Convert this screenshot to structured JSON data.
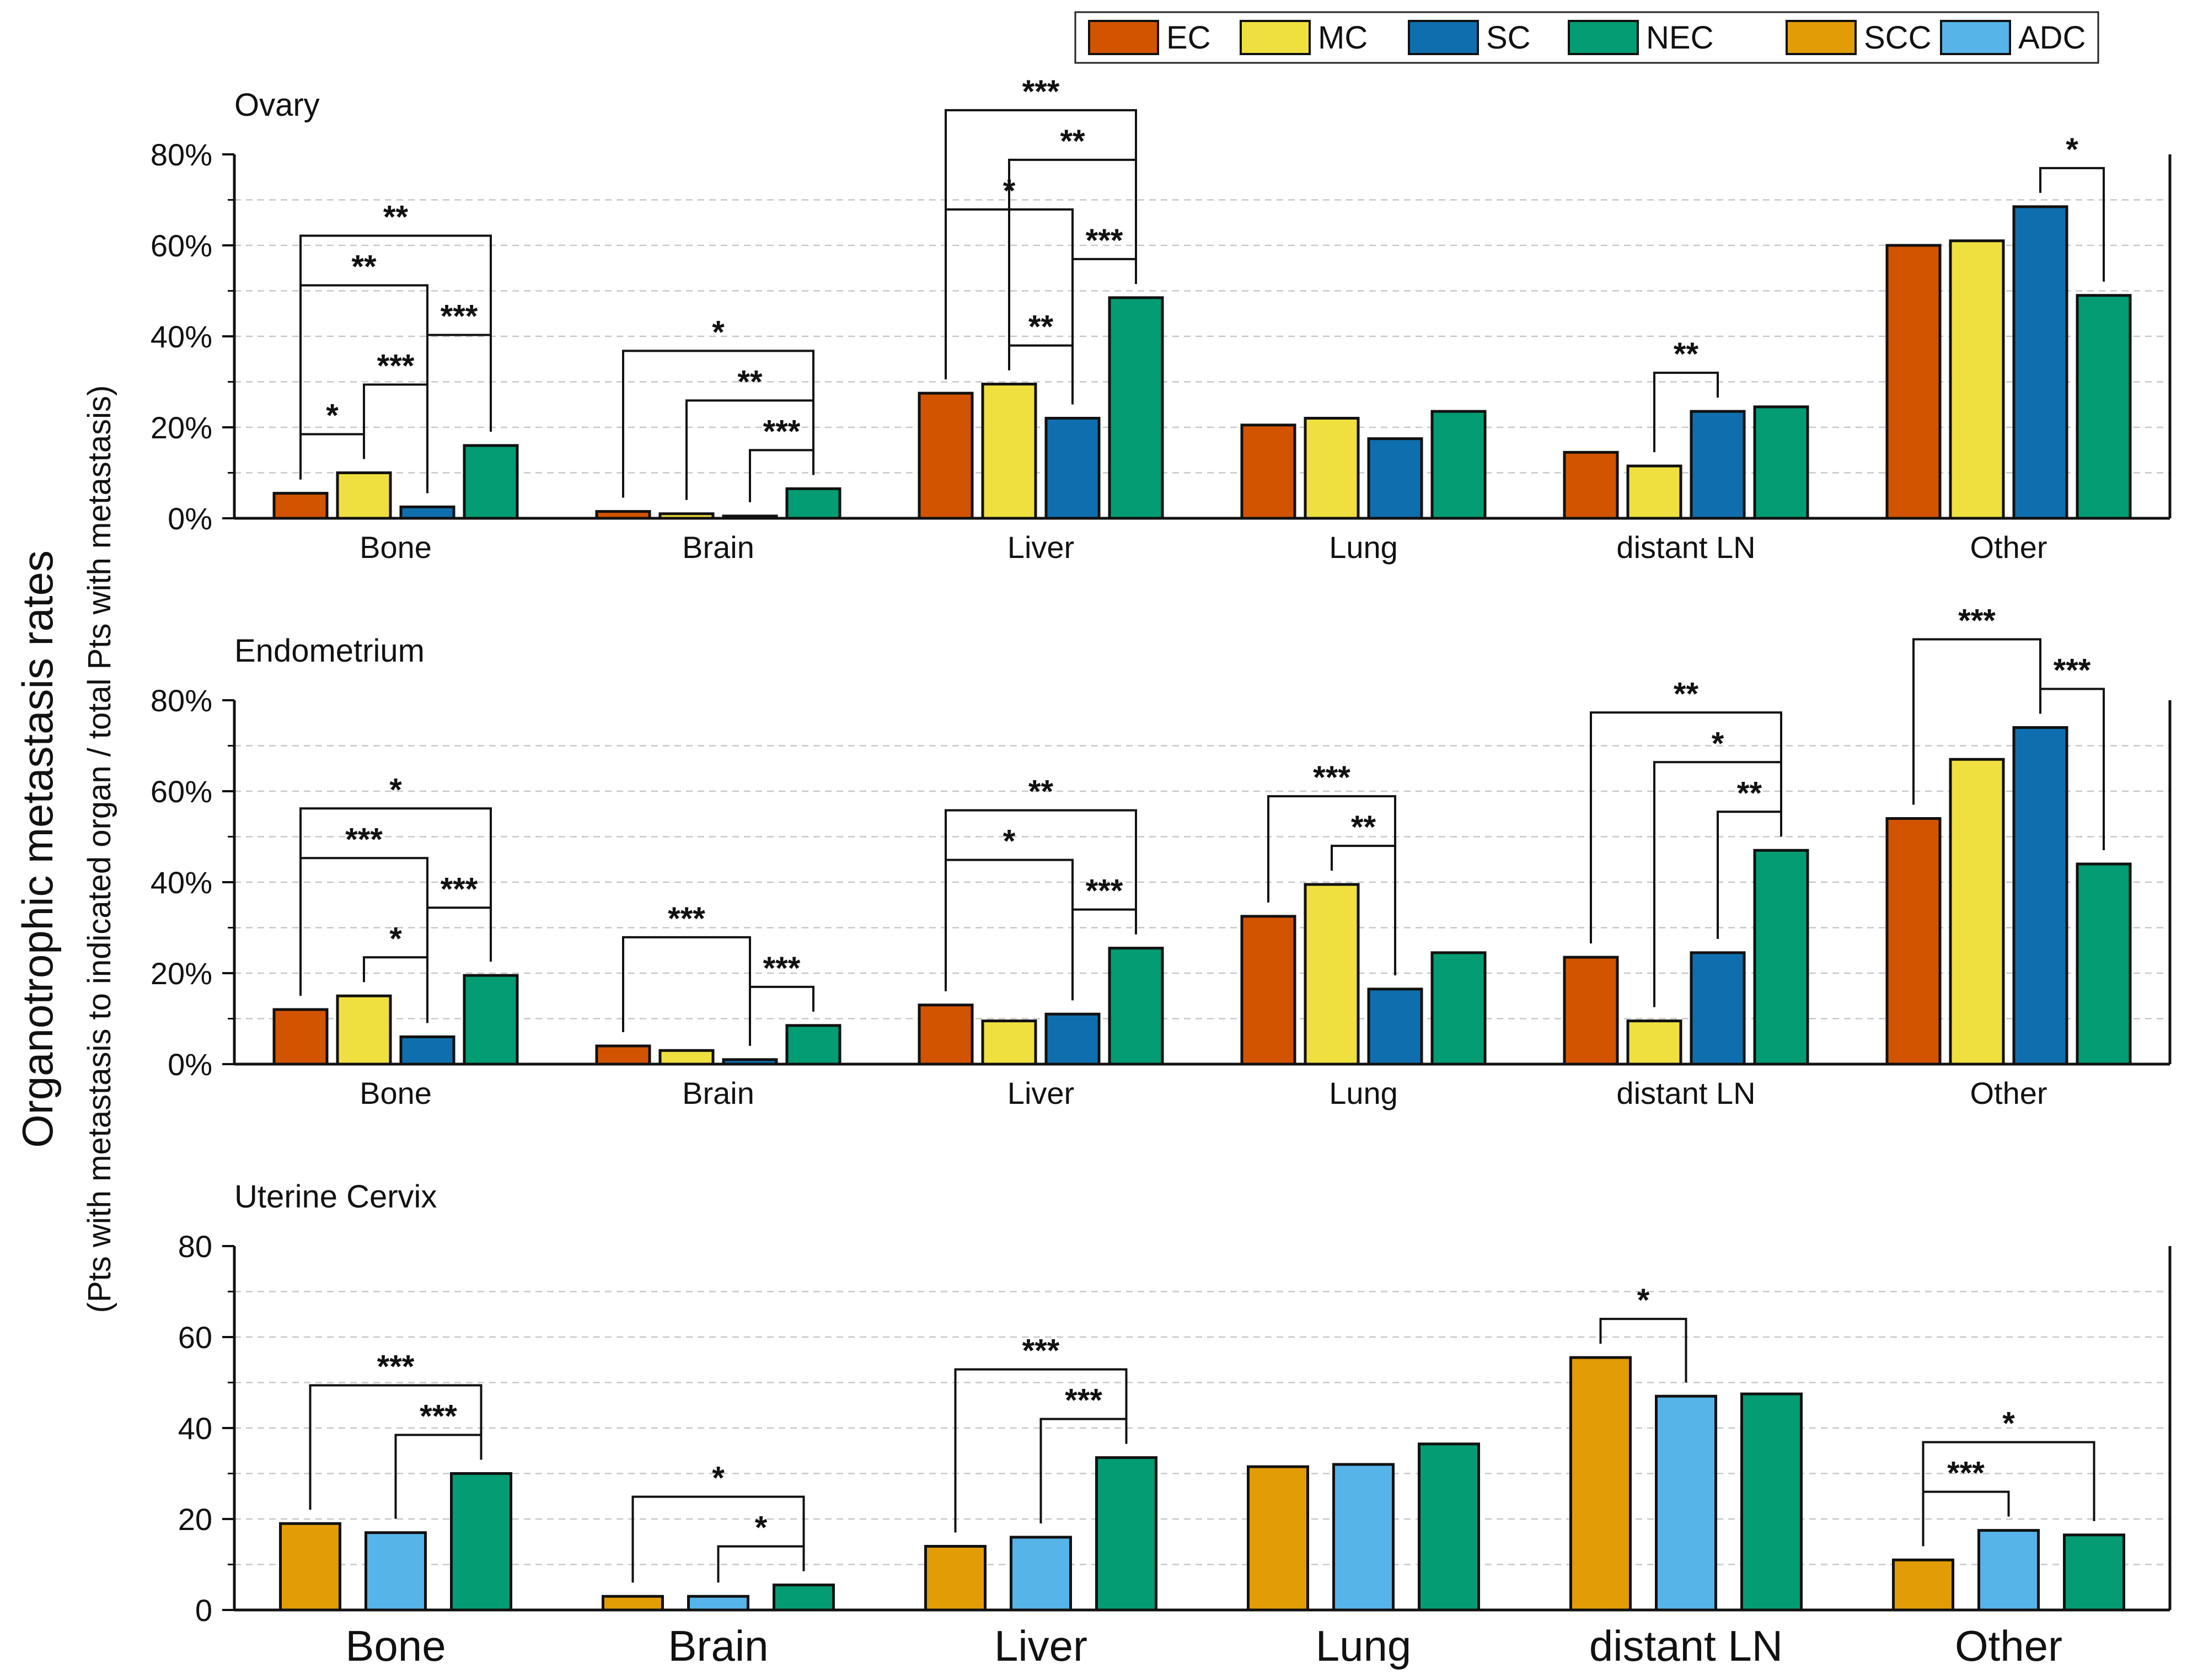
{
  "ylabel": "Organotrophic metastasis rates",
  "ylabel_sub": "(Pts with metastasis to indicated organ / total Pts with metastasis)",
  "legend": {
    "position": "top-right",
    "entries": [
      {
        "name": "EC",
        "color": "#D35400"
      },
      {
        "name": "MC",
        "color": "#EFE040"
      },
      {
        "name": "SC",
        "color": "#0F6FAE"
      },
      {
        "name": "NEC",
        "color": "#049C72"
      },
      {
        "name": "SCC",
        "color": "#E29C05"
      },
      {
        "name": "ADC",
        "color": "#56B4E9"
      }
    ]
  },
  "chart_data": [
    {
      "type": "bar",
      "title": "Ovary",
      "ylim": [
        0,
        80
      ],
      "yticks": [
        "0%",
        "20%",
        "40%",
        "60%",
        "80%"
      ],
      "grid": true,
      "categories": [
        "Bone",
        "Brain",
        "Liver",
        "Lung",
        "distant LN",
        "Other"
      ],
      "series": [
        {
          "name": "EC",
          "color": "#D35400",
          "values": [
            5.5,
            1.5,
            27.5,
            20.5,
            14.5,
            60
          ]
        },
        {
          "name": "MC",
          "color": "#EFE040",
          "values": [
            10,
            1,
            29.5,
            22,
            11.5,
            61
          ]
        },
        {
          "name": "SC",
          "color": "#0F6FAE",
          "values": [
            2.5,
            0.5,
            22,
            17.5,
            23.5,
            68.5
          ]
        },
        {
          "name": "NEC",
          "color": "#049C72",
          "values": [
            16,
            6.5,
            48.5,
            23.5,
            24.5,
            49
          ]
        }
      ],
      "significance": [
        {
          "category": "Bone",
          "from": "EC",
          "to": "MC",
          "label": "*"
        },
        {
          "category": "Bone",
          "from": "MC",
          "to": "SC",
          "label": "***"
        },
        {
          "category": "Bone",
          "from": "SC",
          "to": "NEC",
          "label": "***"
        },
        {
          "category": "Bone",
          "from": "EC",
          "to": "SC",
          "label": "**"
        },
        {
          "category": "Bone",
          "from": "EC",
          "to": "NEC",
          "label": "**"
        },
        {
          "category": "Brain",
          "from": "SC",
          "to": "NEC",
          "label": "***"
        },
        {
          "category": "Brain",
          "from": "MC",
          "to": "NEC",
          "label": "**"
        },
        {
          "category": "Brain",
          "from": "EC",
          "to": "NEC",
          "label": "*"
        },
        {
          "category": "Liver",
          "from": "MC",
          "to": "SC",
          "label": "**"
        },
        {
          "category": "Liver",
          "from": "SC",
          "to": "NEC",
          "label": "***"
        },
        {
          "category": "Liver",
          "from": "EC",
          "to": "SC",
          "label": "*"
        },
        {
          "category": "Liver",
          "from": "MC",
          "to": "NEC",
          "label": "**"
        },
        {
          "category": "Liver",
          "from": "EC",
          "to": "NEC",
          "label": "***"
        },
        {
          "category": "distant LN",
          "from": "MC",
          "to": "SC",
          "label": "**"
        },
        {
          "category": "Other",
          "from": "SC",
          "to": "NEC",
          "label": "*"
        }
      ]
    },
    {
      "type": "bar",
      "title": "Endometrium",
      "ylim": [
        0,
        80
      ],
      "yticks": [
        "0%",
        "20%",
        "40%",
        "60%",
        "80%"
      ],
      "grid": true,
      "categories": [
        "Bone",
        "Brain",
        "Liver",
        "Lung",
        "distant LN",
        "Other"
      ],
      "series": [
        {
          "name": "EC",
          "color": "#D35400",
          "values": [
            12,
            4,
            13,
            32.5,
            23.5,
            54
          ]
        },
        {
          "name": "MC",
          "color": "#EFE040",
          "values": [
            15,
            3,
            9.5,
            39.5,
            9.5,
            67
          ]
        },
        {
          "name": "SC",
          "color": "#0F6FAE",
          "values": [
            6,
            1,
            11,
            16.5,
            24.5,
            74
          ]
        },
        {
          "name": "NEC",
          "color": "#049C72",
          "values": [
            19.5,
            8.5,
            25.5,
            24.5,
            47,
            44
          ]
        }
      ],
      "significance": [
        {
          "category": "Bone",
          "from": "MC",
          "to": "SC",
          "label": "*"
        },
        {
          "category": "Bone",
          "from": "SC",
          "to": "NEC",
          "label": "***"
        },
        {
          "category": "Bone",
          "from": "EC",
          "to": "SC",
          "label": "***"
        },
        {
          "category": "Bone",
          "from": "EC",
          "to": "NEC",
          "label": "*"
        },
        {
          "category": "Brain",
          "from": "EC",
          "to": "SC",
          "label": "***"
        },
        {
          "category": "Brain",
          "from": "SC",
          "to": "NEC",
          "label": "***"
        },
        {
          "category": "Liver",
          "from": "EC",
          "to": "SC",
          "label": "*"
        },
        {
          "category": "Liver",
          "from": "SC",
          "to": "NEC",
          "label": "***"
        },
        {
          "category": "Liver",
          "from": "EC",
          "to": "NEC",
          "label": "**"
        },
        {
          "category": "Lung",
          "from": "MC",
          "to": "SC",
          "label": "**"
        },
        {
          "category": "Lung",
          "from": "EC",
          "to": "SC",
          "label": "***"
        },
        {
          "category": "distant LN",
          "from": "SC",
          "to": "NEC",
          "label": "**"
        },
        {
          "category": "distant LN",
          "from": "MC",
          "to": "NEC",
          "label": "*"
        },
        {
          "category": "distant LN",
          "from": "EC",
          "to": "NEC",
          "label": "**"
        },
        {
          "category": "Other",
          "from": "EC",
          "to": "SC",
          "label": "***"
        },
        {
          "category": "Other",
          "from": "SC",
          "to": "NEC",
          "label": "***"
        }
      ]
    },
    {
      "type": "bar",
      "title": "Uterine Cervix",
      "ylim": [
        0,
        80
      ],
      "yticks": [
        "0",
        "20",
        "40",
        "60",
        "80"
      ],
      "grid": true,
      "categories": [
        "Bone",
        "Brain",
        "Liver",
        "Lung",
        "distant LN",
        "Other"
      ],
      "series": [
        {
          "name": "SCC",
          "color": "#E29C05",
          "values": [
            19,
            3,
            14,
            31.5,
            55.5,
            11
          ]
        },
        {
          "name": "ADC",
          "color": "#56B4E9",
          "values": [
            17,
            3,
            16,
            32,
            47,
            17.5
          ]
        },
        {
          "name": "NEC",
          "color": "#049C72",
          "values": [
            30,
            5.5,
            33.5,
            36.5,
            47.5,
            16.5
          ]
        }
      ],
      "significance": [
        {
          "category": "Bone",
          "from": "ADC",
          "to": "NEC",
          "label": "***"
        },
        {
          "category": "Bone",
          "from": "SCC",
          "to": "NEC",
          "label": "***"
        },
        {
          "category": "Brain",
          "from": "ADC",
          "to": "NEC",
          "label": "*"
        },
        {
          "category": "Brain",
          "from": "SCC",
          "to": "NEC",
          "label": "*"
        },
        {
          "category": "Liver",
          "from": "ADC",
          "to": "NEC",
          "label": "***"
        },
        {
          "category": "Liver",
          "from": "SCC",
          "to": "NEC",
          "label": "***"
        },
        {
          "category": "distant LN",
          "from": "SCC",
          "to": "ADC",
          "label": "*"
        },
        {
          "category": "Other",
          "from": "SCC",
          "to": "ADC",
          "label": "***"
        },
        {
          "category": "Other",
          "from": "SCC",
          "to": "NEC",
          "label": "*"
        }
      ]
    }
  ]
}
